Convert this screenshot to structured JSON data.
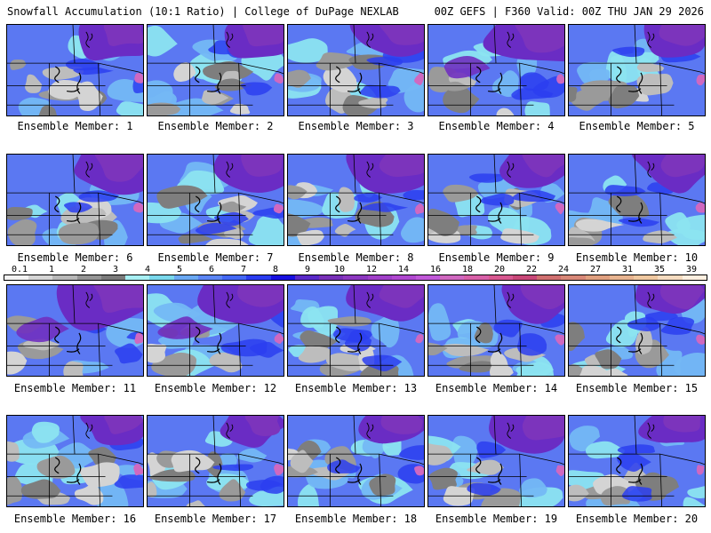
{
  "header": {
    "left": "Snowfall Accumulation (10:1 Ratio) | College of DuPage NEXLAB",
    "right": "00Z GEFS | F360 Valid: 00Z THU JAN 29 2026"
  },
  "legend": {
    "colors": [
      "#f4f4f4",
      "#d6d6d6",
      "#b8b8b8",
      "#959595",
      "#7b7b7b",
      "#a8f0f4",
      "#7ad8ec",
      "#6aa8f2",
      "#5c86f4",
      "#4468f4",
      "#2a3cf0",
      "#1810e0",
      "#5a2ac8",
      "#7830b8",
      "#8c38c0",
      "#a040c8",
      "#b048d0",
      "#c058d8",
      "#d068c0",
      "#d860a8",
      "#d85890",
      "#c84878",
      "#d07070",
      "#d88878",
      "#e0a080",
      "#e8b490",
      "#f0c8a0",
      "#f6dcc0",
      "#fff0e0"
    ],
    "labels": [
      "0.1",
      "1",
      "2",
      "3",
      "4",
      "5",
      "6",
      "7",
      "8",
      "9",
      "10",
      "12",
      "14",
      "16",
      "18",
      "20",
      "22",
      "24",
      "27",
      "31",
      "35",
      "39"
    ]
  },
  "panels": [
    {
      "label": "Ensemble Member: 1",
      "purple": 0.55,
      "gray": 0.55,
      "cyan": 0.3
    },
    {
      "label": "Ensemble Member: 2",
      "purple": 0.5,
      "gray": 0.55,
      "cyan": 0.5
    },
    {
      "label": "Ensemble Member: 3",
      "purple": 0.55,
      "gray": 0.45,
      "cyan": 0.4
    },
    {
      "label": "Ensemble Member: 4",
      "purple": 0.85,
      "gray": 0.2,
      "cyan": 0.2
    },
    {
      "label": "Ensemble Member: 5",
      "purple": 0.6,
      "gray": 0.45,
      "cyan": 0.45
    },
    {
      "label": "Ensemble Member: 6",
      "purple": 0.65,
      "gray": 0.45,
      "cyan": 0.3
    },
    {
      "label": "Ensemble Member: 7",
      "purple": 0.5,
      "gray": 0.6,
      "cyan": 0.45
    },
    {
      "label": "Ensemble Member: 8",
      "purple": 0.6,
      "gray": 0.5,
      "cyan": 0.4
    },
    {
      "label": "Ensemble Member: 9",
      "purple": 0.5,
      "gray": 0.5,
      "cyan": 0.45
    },
    {
      "label": "Ensemble Member: 10",
      "purple": 0.55,
      "gray": 0.3,
      "cyan": 0.5
    },
    {
      "label": "Ensemble Member: 11",
      "purple": 0.9,
      "gray": 0.35,
      "cyan": 0.15
    },
    {
      "label": "Ensemble Member: 12",
      "purple": 0.85,
      "gray": 0.25,
      "cyan": 0.35
    },
    {
      "label": "Ensemble Member: 13",
      "purple": 0.6,
      "gray": 0.55,
      "cyan": 0.35
    },
    {
      "label": "Ensemble Member: 14",
      "purple": 0.5,
      "gray": 0.55,
      "cyan": 0.45
    },
    {
      "label": "Ensemble Member: 15",
      "purple": 0.5,
      "gray": 0.6,
      "cyan": 0.35
    },
    {
      "label": "Ensemble Member: 16",
      "purple": 0.3,
      "gray": 0.6,
      "cyan": 0.55
    },
    {
      "label": "Ensemble Member: 17",
      "purple": 0.3,
      "gray": 0.6,
      "cyan": 0.5
    },
    {
      "label": "Ensemble Member: 18",
      "purple": 0.35,
      "gray": 0.4,
      "cyan": 0.6
    },
    {
      "label": "Ensemble Member: 19",
      "purple": 0.6,
      "gray": 0.35,
      "cyan": 0.5
    },
    {
      "label": "Ensemble Member: 20",
      "purple": 0.35,
      "gray": 0.45,
      "cyan": 0.55
    }
  ]
}
